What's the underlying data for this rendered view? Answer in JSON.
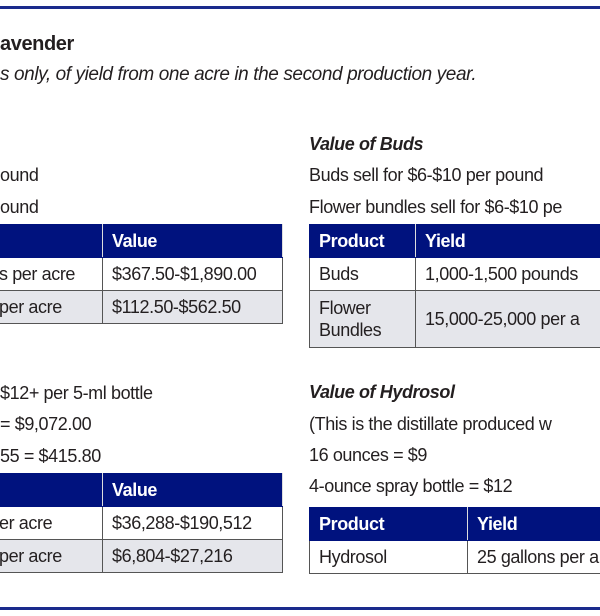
{
  "title": "avender",
  "subtitle": "s only, of yield from one acre in the second production year.",
  "left_top": {
    "lines": [
      "ound",
      "ound"
    ],
    "table": {
      "headers": [
        "",
        "Value"
      ],
      "rows": [
        [
          "s per acre",
          "$367.50-$1,890.00"
        ],
        [
          "per acre",
          "$112.50-$562.50"
        ]
      ]
    }
  },
  "buds": {
    "heading": "Value of Buds",
    "lines": [
      "Buds sell for $6-$10 per pound",
      "Flower bundles sell for $6-$10 pe"
    ],
    "table": {
      "headers": [
        "Product",
        "Yield"
      ],
      "rows": [
        [
          "Buds",
          "1,000-1,500 pounds"
        ],
        [
          "Flower Bundles",
          "15,000-25,000 per a"
        ]
      ]
    }
  },
  "left_bottom": {
    "lines": [
      " $12+ per 5-ml bottle",
      "= $9,072.00",
      "55 = $415.80"
    ],
    "table": {
      "headers": [
        "",
        "Value"
      ],
      "rows": [
        [
          "er acre",
          "$36,288-$190,512"
        ],
        [
          "per acre",
          "$6,804-$27,216"
        ]
      ]
    }
  },
  "hydrosol": {
    "heading": "Value of Hydrosol",
    "lines": [
      "(This is the distillate produced w",
      "16 ounces = $9",
      "4-ounce spray bottle = $12"
    ],
    "table": {
      "headers": [
        "Product",
        "Yield"
      ],
      "rows": [
        [
          "Hydrosol",
          "25 gallons per a"
        ]
      ]
    }
  }
}
